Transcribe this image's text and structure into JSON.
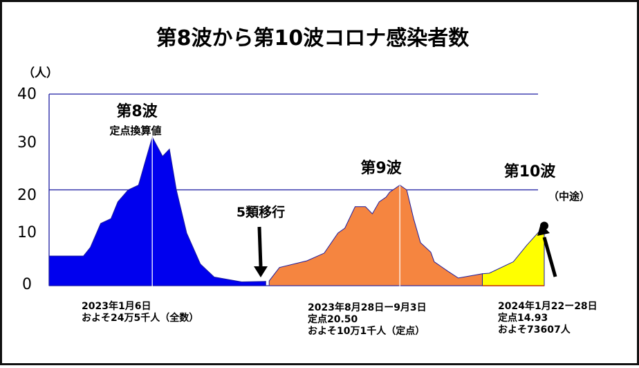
{
  "chart_data": {
    "type": "area",
    "title": "第8波から第10波コロナ感染者数",
    "yunit": "（人）",
    "yticks": [
      "0",
      "10",
      "20",
      "30",
      "40"
    ],
    "ylim": [
      0,
      40
    ],
    "gridlines": [
      20,
      40
    ],
    "series": [
      {
        "name": "第8波",
        "sublabel": "定点換算値",
        "color": "#0000ee",
        "points": [
          [
            0,
            6.2
          ],
          [
            10,
            6.2
          ],
          [
            12,
            8
          ],
          [
            15,
            13
          ],
          [
            18,
            14
          ],
          [
            20,
            17.5
          ],
          [
            23,
            20
          ],
          [
            26,
            21
          ],
          [
            28,
            26
          ],
          [
            30,
            31
          ],
          [
            33,
            27
          ],
          [
            35,
            28.5
          ],
          [
            37,
            20
          ],
          [
            40,
            11
          ],
          [
            44,
            4.5
          ],
          [
            48,
            1.8
          ],
          [
            56,
            0.8
          ],
          [
            63,
            0.9
          ]
        ]
      },
      {
        "name": "第9波",
        "color": "#f58540",
        "points": [
          [
            64,
            1
          ],
          [
            67,
            3.8
          ],
          [
            75,
            5.2
          ],
          [
            80,
            6.8
          ],
          [
            84,
            11
          ],
          [
            86,
            12
          ],
          [
            89,
            16.5
          ],
          [
            92,
            16.5
          ],
          [
            94,
            15
          ],
          [
            96,
            17.5
          ],
          [
            98,
            18.5
          ],
          [
            99,
            19.5
          ],
          [
            102,
            21
          ],
          [
            104,
            20
          ],
          [
            106,
            14
          ],
          [
            108,
            9
          ],
          [
            111,
            7
          ],
          [
            112,
            5
          ],
          [
            116,
            3
          ],
          [
            119,
            1.6
          ],
          [
            126,
            2.5
          ]
        ]
      },
      {
        "name": "第10波",
        "sublabel": "（中途）",
        "color": "#ffff00",
        "points": [
          [
            126,
            2.5
          ],
          [
            128,
            2.6
          ],
          [
            135,
            5
          ],
          [
            139,
            8.5
          ],
          [
            144,
            12.5
          ],
          [
            144,
            0
          ]
        ]
      }
    ],
    "annotations": [
      {
        "text": "5類移行"
      },
      {
        "lines": [
          "2023年1月6日",
          "およそ24万5千人（全数）"
        ]
      },
      {
        "lines": [
          "2023年8月28日ー9月3日",
          "定点20.50",
          "およそ10万1千人（定点）"
        ]
      },
      {
        "lines": [
          "2024年1月22ー28日",
          "定点14.93",
          "およそ73607人"
        ]
      }
    ]
  }
}
